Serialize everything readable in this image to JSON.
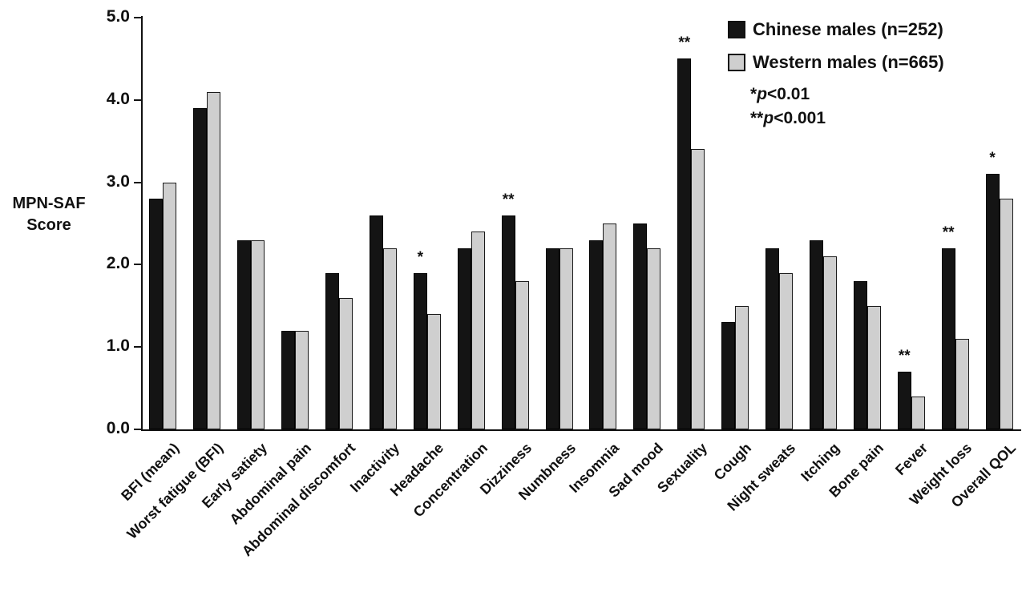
{
  "figure": {
    "y_axis_label_line1": "MPN-SAF",
    "y_axis_label_line2": "Score"
  },
  "legend": {
    "series1": "Chinese males (n=252)",
    "series2": "Western males (n=665)",
    "sig1": {
      "stars": "*",
      "p": "p",
      "rest": "<0.01"
    },
    "sig2": {
      "stars": "**",
      "p": "p",
      "rest": "<0.001"
    }
  },
  "chart_data": {
    "type": "bar",
    "title": "",
    "xlabel": "",
    "ylabel": "MPN-SAF Score",
    "ylim": [
      0,
      5
    ],
    "yticks": [
      0.0,
      1.0,
      2.0,
      3.0,
      4.0,
      5.0
    ],
    "grid": false,
    "legend_position": "top-right",
    "categories": [
      "BFI (mean)",
      "Worst fatigue (BFI)",
      "Early satiety",
      "Abdominal pain",
      "Abdominal discomfort",
      "Inactivity",
      "Headache",
      "Concentration",
      "Dizziness",
      "Numbness",
      "Insomnia",
      "Sad mood",
      "Sexuality",
      "Cough",
      "Night sweats",
      "Itching",
      "Bone pain",
      "Fever",
      "Weight loss",
      "Overall QOL"
    ],
    "series": [
      {
        "name": "Chinese males (n=252)",
        "color": "#141414",
        "values": [
          2.8,
          3.9,
          2.3,
          1.2,
          1.9,
          2.6,
          1.9,
          2.2,
          2.6,
          2.2,
          2.3,
          2.5,
          4.5,
          1.3,
          2.2,
          2.3,
          1.8,
          0.7,
          2.2,
          3.1
        ]
      },
      {
        "name": "Western males (n=665)",
        "color": "#cfcfcf",
        "values": [
          3.0,
          4.1,
          2.3,
          1.2,
          1.6,
          2.2,
          1.4,
          2.4,
          1.8,
          2.2,
          2.5,
          2.2,
          3.4,
          1.5,
          1.9,
          2.1,
          1.5,
          0.4,
          1.1,
          2.8
        ]
      }
    ],
    "significance": [
      null,
      null,
      null,
      null,
      null,
      null,
      "*",
      null,
      "**",
      null,
      null,
      null,
      "**",
      null,
      null,
      null,
      null,
      "**",
      "**",
      "*"
    ],
    "significance_note_1": "*p<0.01",
    "significance_note_2": "**p<0.001"
  }
}
